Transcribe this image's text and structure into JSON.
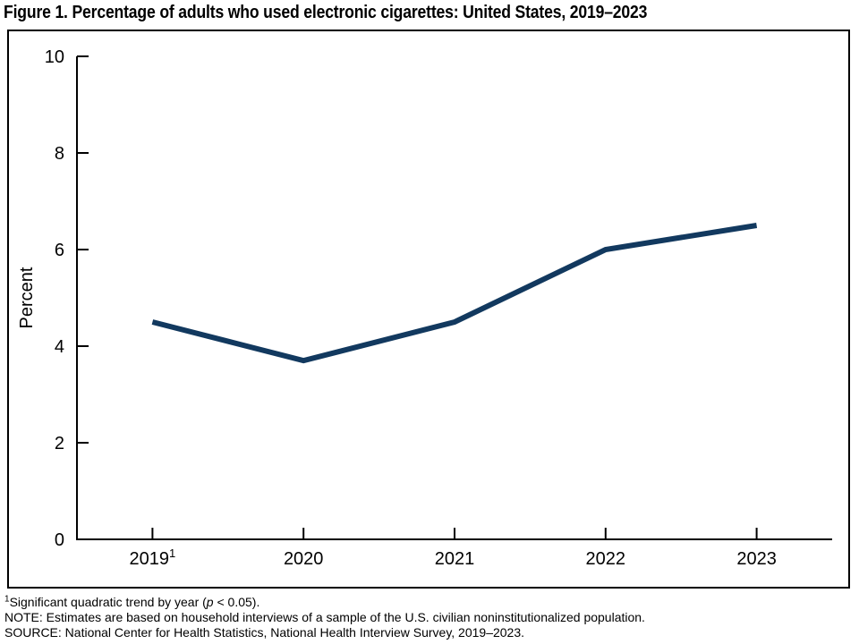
{
  "chart_data": {
    "type": "line",
    "title": "Figure 1. Percentage of adults who used electronic cigarettes: United States, 2019–2023",
    "categories": [
      "2019",
      "2020",
      "2021",
      "2022",
      "2023"
    ],
    "category_superscripts": [
      "1",
      "",
      "",
      "",
      ""
    ],
    "values": [
      4.5,
      3.7,
      4.5,
      6.0,
      6.5
    ],
    "xlabel": "",
    "ylabel": "Percent",
    "ylim": [
      0,
      10
    ],
    "yticks": [
      0,
      2,
      4,
      6,
      8,
      10
    ],
    "grid": false,
    "legend": "none",
    "line_color": "#12395f",
    "axis_color": "#000000"
  },
  "footnotes": {
    "significance": {
      "sup": "1",
      "pre": "Significant quadratic trend by year (",
      "italic_p": "p",
      "post": " < 0.05)."
    },
    "note": "NOTE: Estimates are based on household interviews of a sample of the U.S. civilian noninstitutionalized population.",
    "source": "SOURCE: National Center for Health Statistics, National Health Interview Survey, 2019–2023."
  }
}
